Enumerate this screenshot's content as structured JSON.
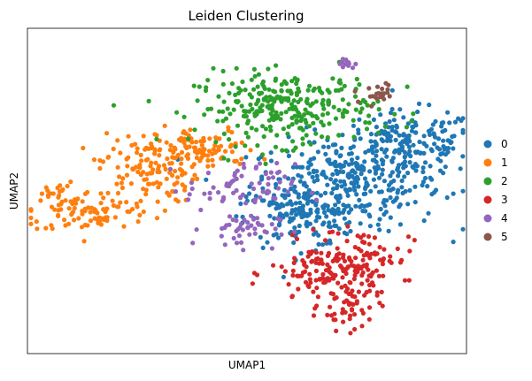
{
  "chart_data": {
    "type": "scatter",
    "title": "Leiden Clustering",
    "xlabel": "UMAP1",
    "ylabel": "UMAP2",
    "xticks": [],
    "yticks": [],
    "grid": false,
    "legend_position": "right",
    "series": [
      {
        "name": "0",
        "color": "#1f77b4",
        "clusters": [
          {
            "cx": 7.6,
            "cy": 4.7,
            "sx": 1.15,
            "sy": 0.75,
            "n": 320
          },
          {
            "cx": 9.1,
            "cy": 6.1,
            "sx": 0.85,
            "sy": 0.55,
            "n": 180
          },
          {
            "cx": 6.5,
            "cy": 3.6,
            "sx": 0.65,
            "sy": 0.5,
            "n": 120
          }
        ]
      },
      {
        "name": "1",
        "color": "#ff7f0e",
        "clusters": [
          {
            "cx": 1.5,
            "cy": 3.8,
            "sx": 0.75,
            "sy": 0.35,
            "n": 90
          },
          {
            "cx": 2.9,
            "cy": 5.3,
            "sx": 0.6,
            "sy": 0.6,
            "n": 130
          },
          {
            "cx": 4.3,
            "cy": 5.9,
            "sx": 0.6,
            "sy": 0.35,
            "n": 80
          },
          {
            "cx": 0.7,
            "cy": 4.4,
            "sx": 0.2,
            "sy": 0.2,
            "n": 20
          }
        ]
      },
      {
        "name": "2",
        "color": "#2ca02c",
        "clusters": [
          {
            "cx": 6.2,
            "cy": 7.3,
            "sx": 1.1,
            "sy": 0.6,
            "n": 290
          }
        ]
      },
      {
        "name": "3",
        "color": "#d62728",
        "clusters": [
          {
            "cx": 7.1,
            "cy": 1.7,
            "sx": 0.65,
            "sy": 0.55,
            "n": 110
          },
          {
            "cx": 7.7,
            "cy": 0.7,
            "sx": 0.35,
            "sy": 0.45,
            "n": 55
          },
          {
            "cx": 8.1,
            "cy": 2.3,
            "sx": 0.55,
            "sy": 0.45,
            "n": 70
          }
        ]
      },
      {
        "name": "4",
        "color": "#9467bd",
        "clusters": [
          {
            "cx": 5.1,
            "cy": 3.2,
            "sx": 0.45,
            "sy": 0.3,
            "n": 45
          },
          {
            "cx": 5.1,
            "cy": 4.6,
            "sx": 0.65,
            "sy": 0.4,
            "n": 70
          },
          {
            "cx": 7.6,
            "cy": 8.8,
            "sx": 0.12,
            "sy": 0.1,
            "n": 12
          }
        ]
      },
      {
        "name": "5",
        "color": "#8c564b",
        "clusters": [
          {
            "cx": 8.4,
            "cy": 7.8,
            "sx": 0.3,
            "sy": 0.2,
            "n": 22
          }
        ]
      }
    ]
  }
}
